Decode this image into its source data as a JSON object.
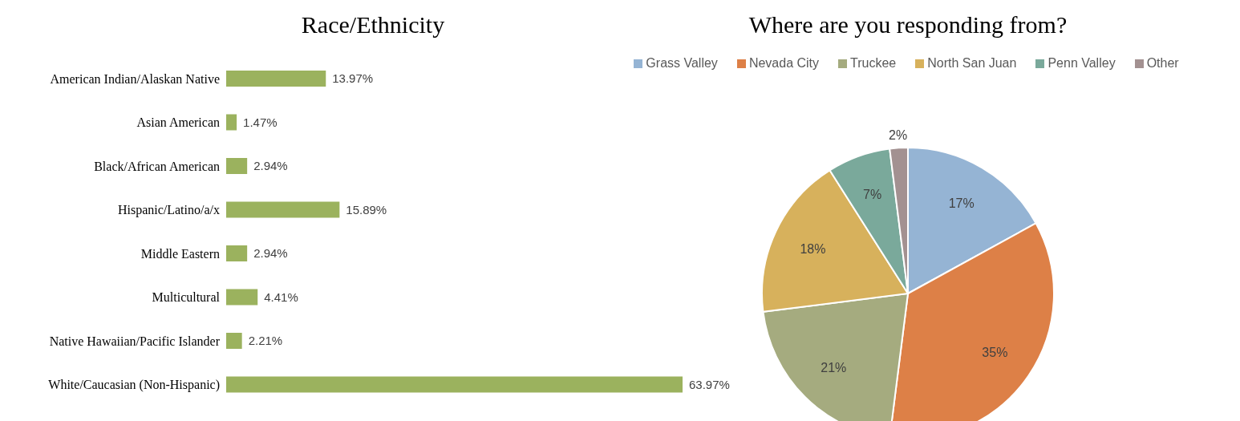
{
  "chart_data": [
    {
      "type": "bar",
      "orientation": "horizontal",
      "title": "Race/Ethnicity",
      "categories": [
        "American Indian/Alaskan Native",
        "Asian American",
        "Black/African American",
        "Hispanic/Latino/a/x",
        "Middle Eastern",
        "Multicultural",
        "Native Hawaiian/Pacific Islander",
        "White/Caucasian (Non-Hispanic)"
      ],
      "values": [
        13.97,
        1.47,
        2.94,
        15.89,
        2.94,
        4.41,
        2.21,
        63.97
      ],
      "value_labels": [
        "13.97%",
        "1.47%",
        "2.94%",
        "15.89%",
        "2.94%",
        "4.41%",
        "2.21%",
        "63.97%"
      ],
      "color": "#9bb25e"
    },
    {
      "type": "pie",
      "title": "Where are you responding from?",
      "categories": [
        "Grass Valley",
        "Nevada City",
        "Truckee",
        "North San Juan",
        "Penn Valley",
        "Other"
      ],
      "values": [
        17,
        35,
        21,
        18,
        7,
        2
      ],
      "value_labels": [
        "17%",
        "35%",
        "21%",
        "18%",
        "7%",
        "2%"
      ],
      "colors": [
        "#95b4d4",
        "#dd8047",
        "#a5ab7f",
        "#d7b15c",
        "#7aa99b",
        "#a39191"
      ],
      "legend": "top"
    }
  ]
}
